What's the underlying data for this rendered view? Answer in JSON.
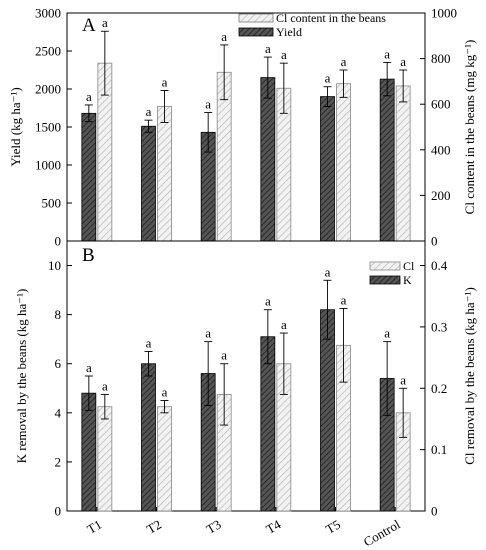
{
  "chart_data": [
    {
      "type": "bar",
      "panel_label": "A",
      "categories": [
        "T1",
        "T2",
        "T3",
        "T4",
        "T5",
        "Control"
      ],
      "ylabel": "Yield (kg ha⁻¹)",
      "y2label": "Cl content in the beans (mg kg⁻¹)",
      "ylim": [
        0,
        3000
      ],
      "yticks": [
        0,
        500,
        1000,
        1500,
        2000,
        2500,
        3000
      ],
      "y2lim": [
        0,
        1000
      ],
      "y2ticks": [
        0,
        200,
        400,
        600,
        800,
        1000
      ],
      "legend_position": "top-right",
      "series": [
        {
          "name": "Yield",
          "axis": "left",
          "values": [
            1680,
            1510,
            1430,
            2150,
            1900,
            2130
          ],
          "errors": [
            110,
            80,
            260,
            270,
            130,
            220
          ],
          "letters": [
            "a",
            "a",
            "a",
            "a",
            "a",
            "a"
          ],
          "color": "#3a3a3a"
        },
        {
          "name": "Cl content in the beans",
          "axis": "right",
          "values": [
            780,
            590,
            740,
            670,
            690,
            680
          ],
          "errors": [
            140,
            70,
            120,
            110,
            60,
            70
          ],
          "letters": [
            "a",
            "a",
            "a",
            "a",
            "a",
            "a"
          ],
          "color": "#d8d8d8"
        }
      ]
    },
    {
      "type": "bar",
      "panel_label": "B",
      "categories": [
        "T1",
        "T2",
        "T3",
        "T4",
        "T5",
        "Control"
      ],
      "ylabel": "K removal by the beans (kg ha⁻¹)",
      "y2label": "Cl removal by the beans (kg ha⁻¹)",
      "ylim": [
        0,
        11
      ],
      "yticks": [
        0,
        2,
        4,
        6,
        8,
        10
      ],
      "y2lim": [
        0,
        0.44
      ],
      "y2ticks": [
        0,
        0.1,
        0.2,
        0.3,
        0.4
      ],
      "legend_position": "top-right",
      "series": [
        {
          "name": "K",
          "axis": "left",
          "values": [
            4.8,
            6.0,
            5.6,
            7.1,
            8.2,
            5.4
          ],
          "errors": [
            0.7,
            0.5,
            1.3,
            1.1,
            1.2,
            1.5
          ],
          "letters": [
            "a",
            "a",
            "a",
            "a",
            "a",
            "a"
          ],
          "color": "#3a3a3a"
        },
        {
          "name": "Cl",
          "axis": "right",
          "values": [
            0.17,
            0.17,
            0.19,
            0.24,
            0.27,
            0.16
          ],
          "errors": [
            0.02,
            0.01,
            0.05,
            0.05,
            0.06,
            0.04
          ],
          "letters": [
            "a",
            "a",
            "a",
            "a",
            "a",
            "a"
          ],
          "color": "#e0e0e0"
        }
      ]
    }
  ]
}
